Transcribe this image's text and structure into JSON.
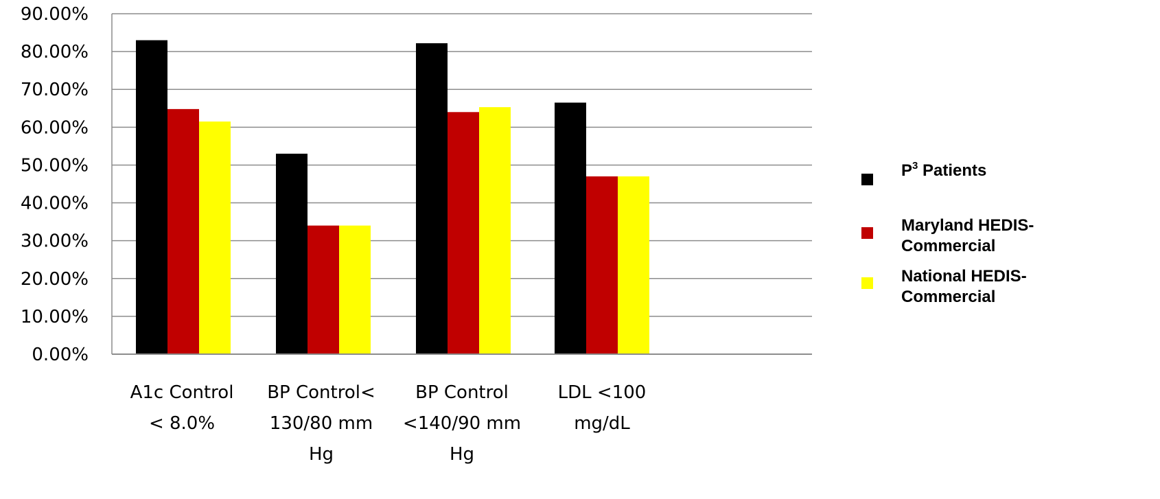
{
  "chart_data": {
    "type": "bar",
    "title": "",
    "xlabel": "",
    "ylabel": "",
    "ylim": [
      0,
      0.9
    ],
    "ytick_values": [
      0,
      0.1,
      0.2,
      0.3,
      0.4,
      0.5,
      0.6,
      0.7,
      0.8,
      0.9
    ],
    "ytick_labels": [
      "0.00%",
      "10.00%",
      "20.00%",
      "30.00%",
      "40.00%",
      "50.00%",
      "60.00%",
      "70.00%",
      "80.00%",
      "90.00%"
    ],
    "grid": true,
    "legend_position": "right",
    "categories": [
      [
        "A1c Control",
        "< 8.0%"
      ],
      [
        "BP Control<",
        "130/80 mm",
        "Hg"
      ],
      [
        "BP Control",
        "<140/90 mm",
        "Hg"
      ],
      [
        "LDL <100",
        "mg/dL"
      ]
    ],
    "series": [
      {
        "name": "P³ Patients",
        "name_main": "P",
        "name_sup": "3",
        "name_rest": " Patients",
        "color": "#000000",
        "values": [
          0.83,
          0.53,
          0.822,
          0.665
        ]
      },
      {
        "name": "Maryland HEDIS-Commercial",
        "name_lines": [
          "Maryland HEDIS-",
          "Commercial"
        ],
        "color": "#c00000",
        "values": [
          0.648,
          0.34,
          0.64,
          0.47
        ]
      },
      {
        "name": "National HEDIS-Commercial",
        "name_lines": [
          "National HEDIS-",
          "Commercial"
        ],
        "color": "#ffff00",
        "values": [
          0.615,
          0.34,
          0.653,
          0.47
        ]
      }
    ]
  }
}
